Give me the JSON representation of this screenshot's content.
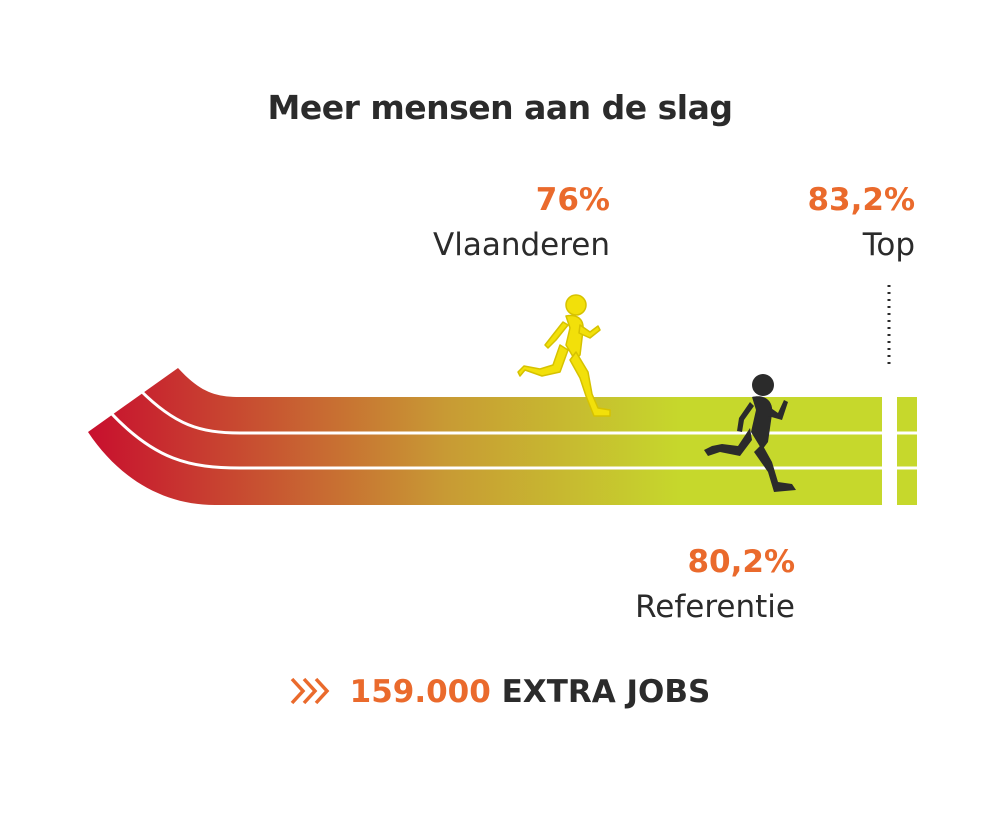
{
  "title": "Meer mensen aan de slag",
  "markers": {
    "vlaanderen": {
      "value": "76%",
      "label": "Vlaanderen"
    },
    "top": {
      "value": "83,2%",
      "label": "Top"
    },
    "referentie": {
      "value": "80,2%",
      "label": "Referentie"
    }
  },
  "footer": {
    "number": "159.000",
    "text": "EXTRA JOBS"
  },
  "colors": {
    "accent": "#ea6a2c",
    "text": "#2b2b2b",
    "track_start": "#c8102e",
    "track_end": "#c6d82c",
    "runner_vlaanderen": "#f2e00a",
    "runner_referentie": "#2b2b2b"
  },
  "icons": {
    "chevrons": "triple-chevron-icon",
    "runner": "runner-icon"
  }
}
